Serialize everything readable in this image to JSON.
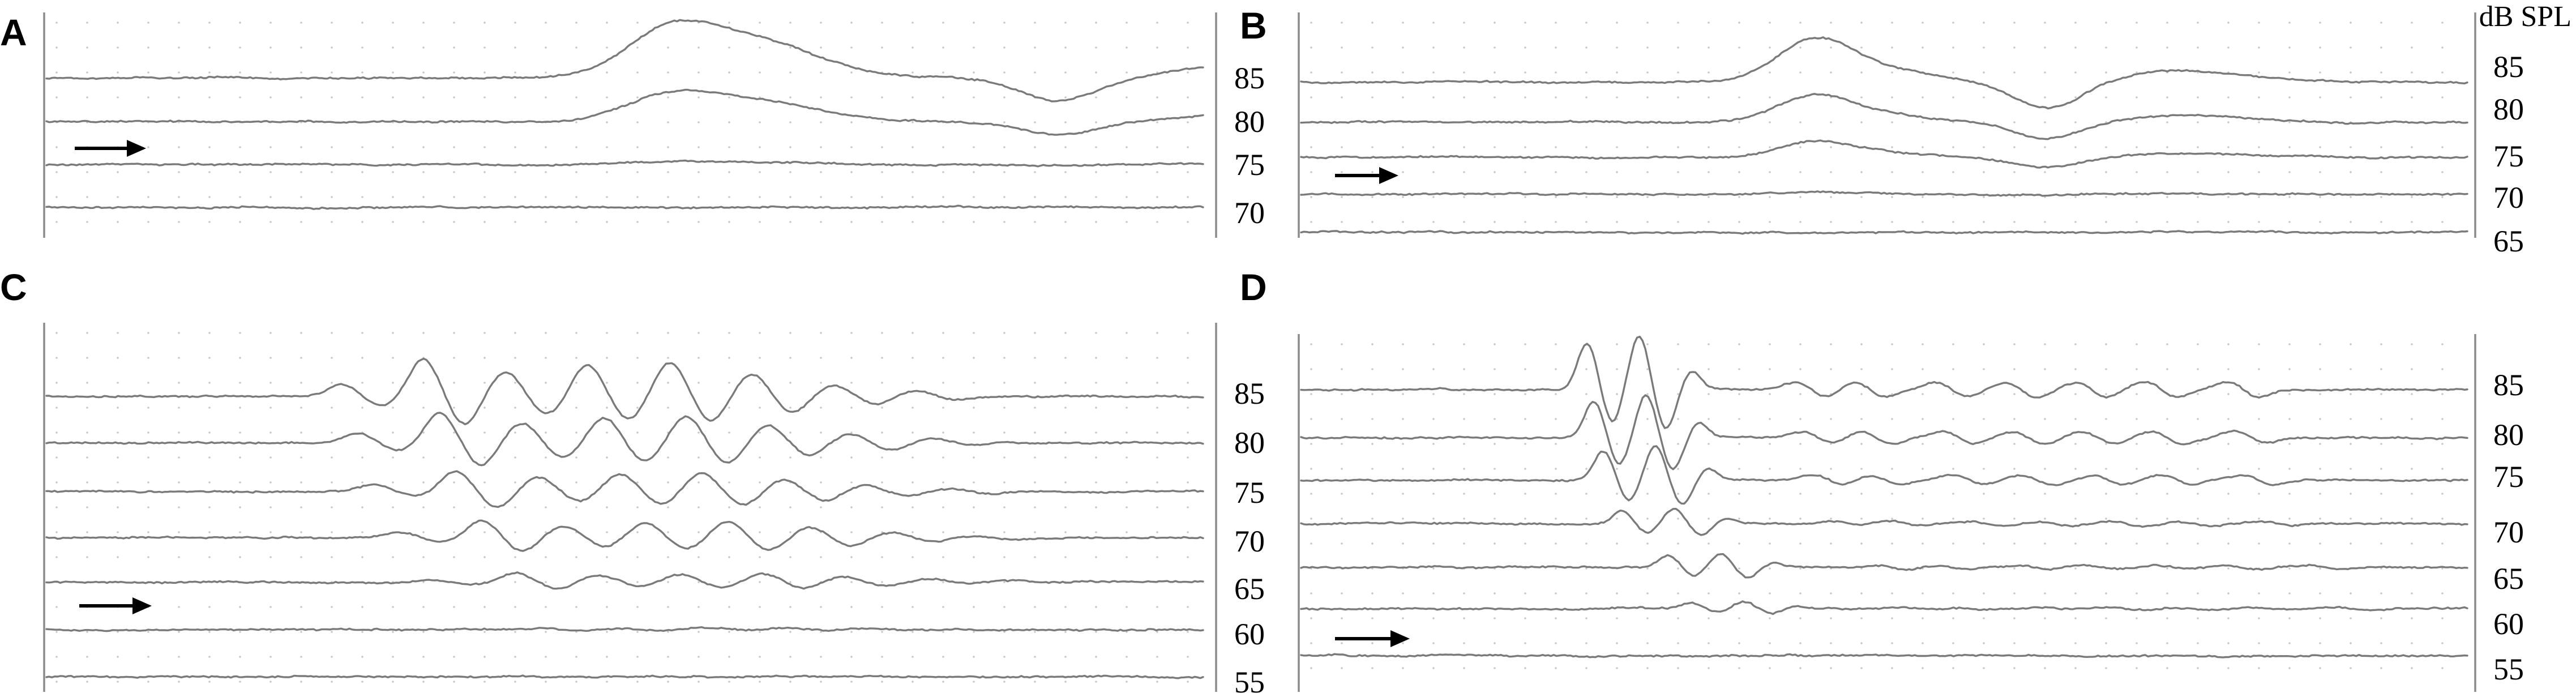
{
  "figure": {
    "unit_label": "dB SPL"
  },
  "chart_data": [
    {
      "type": "line",
      "panel": "A",
      "ylabel": "dB SPL",
      "threshold_arrow_level": 75,
      "series": [
        {
          "level": 85,
          "label": "85",
          "response": "slow wave: broad positive peak mid-sweep, negative trough late"
        },
        {
          "level": 80,
          "label": "80",
          "response": "smaller slow wave"
        },
        {
          "level": 75,
          "label": "75",
          "response": "threshold, minimal deflection"
        },
        {
          "level": 70,
          "label": "70",
          "response": "no response"
        }
      ]
    },
    {
      "type": "line",
      "panel": "B",
      "ylabel": "dB SPL",
      "threshold_arrow_level": 70,
      "series": [
        {
          "level": 85,
          "label": "85",
          "response": "slow wave with positive peak and trough"
        },
        {
          "level": 80,
          "label": "80",
          "response": "slow wave"
        },
        {
          "level": 75,
          "label": "75",
          "response": "smaller slow wave"
        },
        {
          "level": 70,
          "label": "70",
          "response": "threshold, minimal deflection"
        },
        {
          "level": 65,
          "label": "65",
          "response": "no response"
        }
      ]
    },
    {
      "type": "line",
      "panel": "C",
      "ylabel": "dB SPL",
      "threshold_arrow_level": 60,
      "series": [
        {
          "level": 85,
          "label": "85",
          "response": "large oscillatory ringing response"
        },
        {
          "level": 80,
          "label": "80",
          "response": "oscillatory response"
        },
        {
          "level": 75,
          "label": "75",
          "response": "oscillatory response"
        },
        {
          "level": 70,
          "label": "70",
          "response": "smaller oscillations"
        },
        {
          "level": 65,
          "label": "65",
          "response": "small oscillations"
        },
        {
          "level": 60,
          "label": "60",
          "response": "threshold, no clear response"
        },
        {
          "level": 55,
          "label": "55",
          "response": "no response"
        }
      ]
    },
    {
      "type": "line",
      "panel": "D",
      "ylabel": "dB SPL",
      "threshold_arrow_level": 55,
      "series": [
        {
          "level": 85,
          "label": "85",
          "response": "sharp early oscillation followed by small ringing"
        },
        {
          "level": 80,
          "label": "80",
          "response": "early oscillation"
        },
        {
          "level": 75,
          "label": "75",
          "response": "early oscillation"
        },
        {
          "level": 70,
          "label": "70",
          "response": "small delayed oscillation"
        },
        {
          "level": 65,
          "label": "65",
          "response": "small delayed oscillation"
        },
        {
          "level": 60,
          "label": "60",
          "response": "very small deflection"
        },
        {
          "level": 55,
          "label": "55",
          "response": "threshold, no response"
        }
      ]
    }
  ]
}
